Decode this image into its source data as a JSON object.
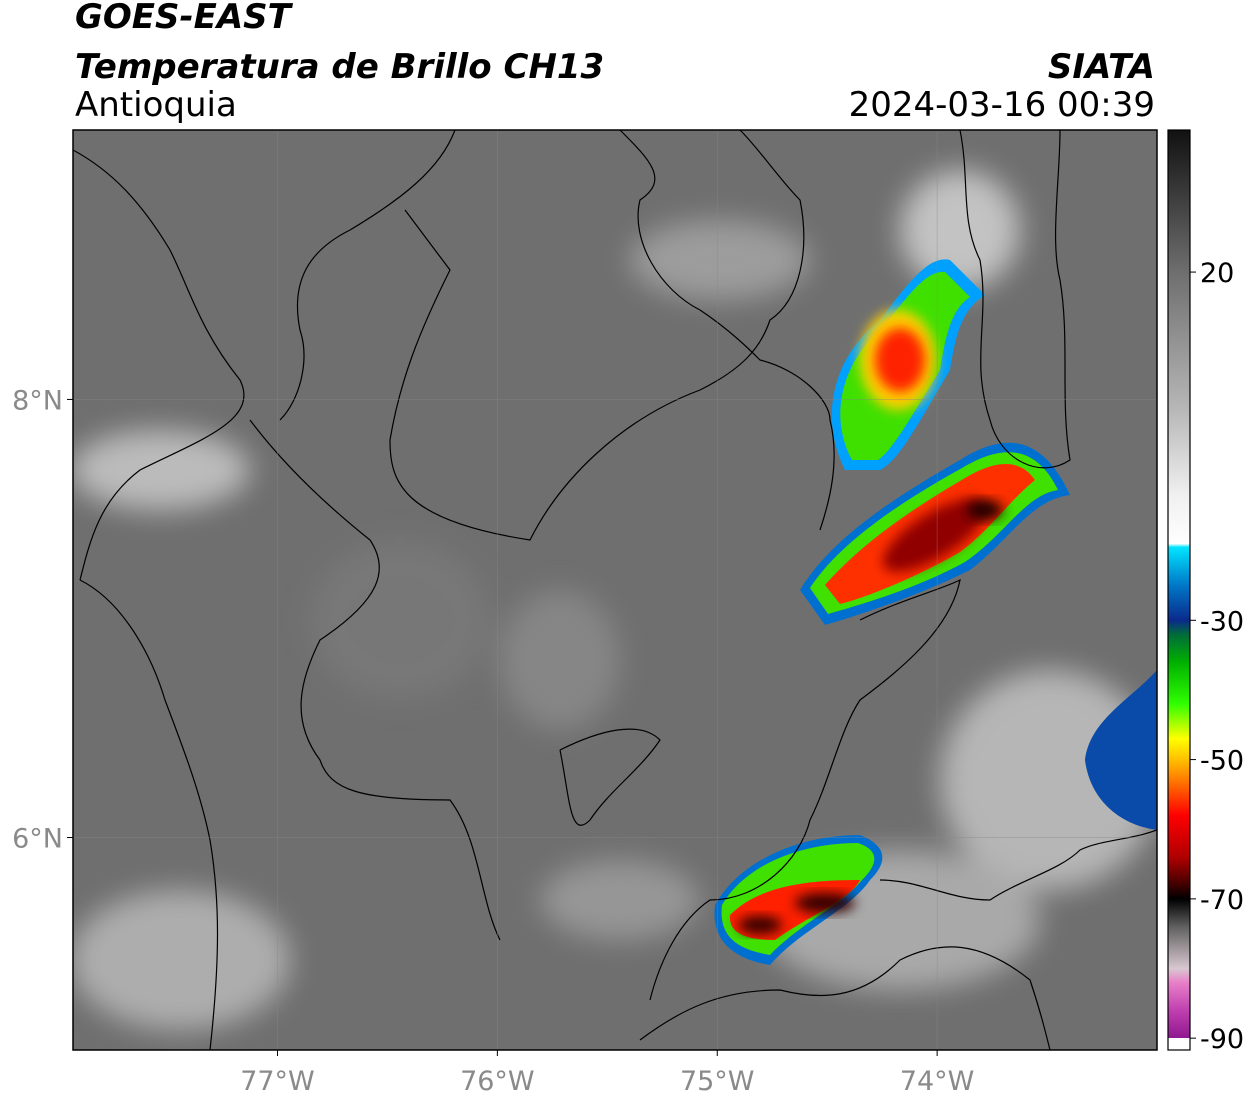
{
  "header": {
    "title": "GOES-EAST",
    "subtitle": "Temperatura de Brillo CH13",
    "region": "Antioquia",
    "source": "SIATA",
    "datetime": "2024-03-16 00:39"
  },
  "map": {
    "xlim": [
      -77.93,
      -73.0
    ],
    "ylim": [
      5.03,
      9.23
    ],
    "xticks": [
      {
        "value": -77,
        "label": "77°W"
      },
      {
        "value": -76,
        "label": "76°W"
      },
      {
        "value": -75,
        "label": "75°W"
      },
      {
        "value": -74,
        "label": "74°W"
      }
    ],
    "yticks": [
      {
        "value": 8,
        "label": "8°N"
      },
      {
        "value": 6,
        "label": "6°N"
      }
    ],
    "grid": true
  },
  "colorbar": {
    "lim": [
      -91.7,
      40.4
    ],
    "ticks": [
      20,
      -30,
      -50,
      -70,
      -90
    ],
    "stops": [
      [
        40.4,
        "#111111"
      ],
      [
        20,
        "#6e6e6e"
      ],
      [
        0,
        "#b8b8b8"
      ],
      [
        -12,
        "#f0f0f0"
      ],
      [
        -19,
        "#ffffff"
      ],
      [
        -19.5,
        "#00e5ff"
      ],
      [
        -25,
        "#0077c8"
      ],
      [
        -30,
        "#0a2a8c"
      ],
      [
        -32,
        "#006b3a"
      ],
      [
        -36,
        "#00b000"
      ],
      [
        -42,
        "#30ff00"
      ],
      [
        -47,
        "#ffff00"
      ],
      [
        -50,
        "#ffc000"
      ],
      [
        -54,
        "#ff6000"
      ],
      [
        -58,
        "#ff0000"
      ],
      [
        -64,
        "#b00000"
      ],
      [
        -68,
        "#400000"
      ],
      [
        -70,
        "#000000"
      ],
      [
        -74,
        "#606060"
      ],
      [
        -80,
        "#d8c8d0"
      ],
      [
        -82,
        "#e880c8"
      ],
      [
        -86,
        "#c040b0"
      ],
      [
        -90,
        "#901890"
      ],
      [
        -90.01,
        "#ffffff"
      ],
      [
        -91.7,
        "#ffffff"
      ]
    ]
  }
}
